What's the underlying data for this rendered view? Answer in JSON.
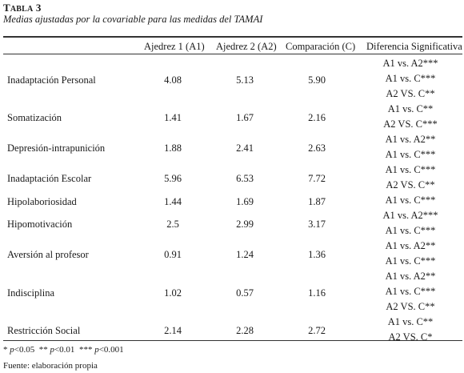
{
  "table_label": {
    "prefix": "T",
    "rest": "ABLA",
    "number": " 3"
  },
  "caption": "Medias ajustadas por la covariable para las medidas del TAMAI",
  "columns": [
    "Ajedrez 1 (A1)",
    "Ajedrez 2 (A2)",
    "Comparación (C)",
    "Diferencia Significativa"
  ],
  "rows": [
    {
      "name": "Inadaptación Personal",
      "a1": "4.08",
      "a2": "5.13",
      "c": "5.90",
      "sig": [
        "A1 vs. A2***",
        "A1 vs. C***",
        "A2 VS. C**"
      ]
    },
    {
      "name": "Somatización",
      "a1": "1.41",
      "a2": "1.67",
      "c": "2.16",
      "sig": [
        "A1 vs. C**",
        "A2 VS. C***"
      ]
    },
    {
      "name": "Depresión-intrapunición",
      "a1": "1.88",
      "a2": "2.41",
      "c": "2.63",
      "sig": [
        "A1 vs. A2**",
        "A1 vs. C***"
      ]
    },
    {
      "name": "Inadaptación Escolar",
      "a1": "5.96",
      "a2": "6.53",
      "c": "7.72",
      "sig": [
        "A1 vs. C***",
        "A2 VS. C**"
      ]
    },
    {
      "name": "Hipolaboriosidad",
      "a1": "1.44",
      "a2": "1.69",
      "c": "1.87",
      "sig": [
        "A1 vs. C***"
      ]
    },
    {
      "name": "Hipomotivación",
      "a1": "2.5",
      "a2": "2.99",
      "c": "3.17",
      "sig": [
        "A1 vs. A2***",
        "A1 vs. C***"
      ]
    },
    {
      "name": "Aversión al profesor",
      "a1": "0.91",
      "a2": "1.24",
      "c": "1.36",
      "sig": [
        "A1 vs. A2**",
        "A1 vs. C***"
      ]
    },
    {
      "name": "Indisciplina",
      "a1": "1.02",
      "a2": "0.57",
      "c": "1.16",
      "sig": [
        "A1 vs. A2**",
        "A1 vs. C***",
        "A2 VS. C**"
      ]
    },
    {
      "name": "Restricción Social",
      "a1": "2.14",
      "a2": "2.28",
      "c": "2.72",
      "sig": [
        "A1 vs. C**",
        "A2 VS. C*"
      ]
    }
  ],
  "notes": {
    "significance": [
      {
        "stars": "* ",
        "p": "p",
        "rest": "<0.05"
      },
      {
        "stars": "** ",
        "p": "p",
        "rest": "<0.01"
      },
      {
        "stars": "*** ",
        "p": "p",
        "rest": "<0.001"
      }
    ],
    "source": "Fuente: elaboración propia"
  }
}
